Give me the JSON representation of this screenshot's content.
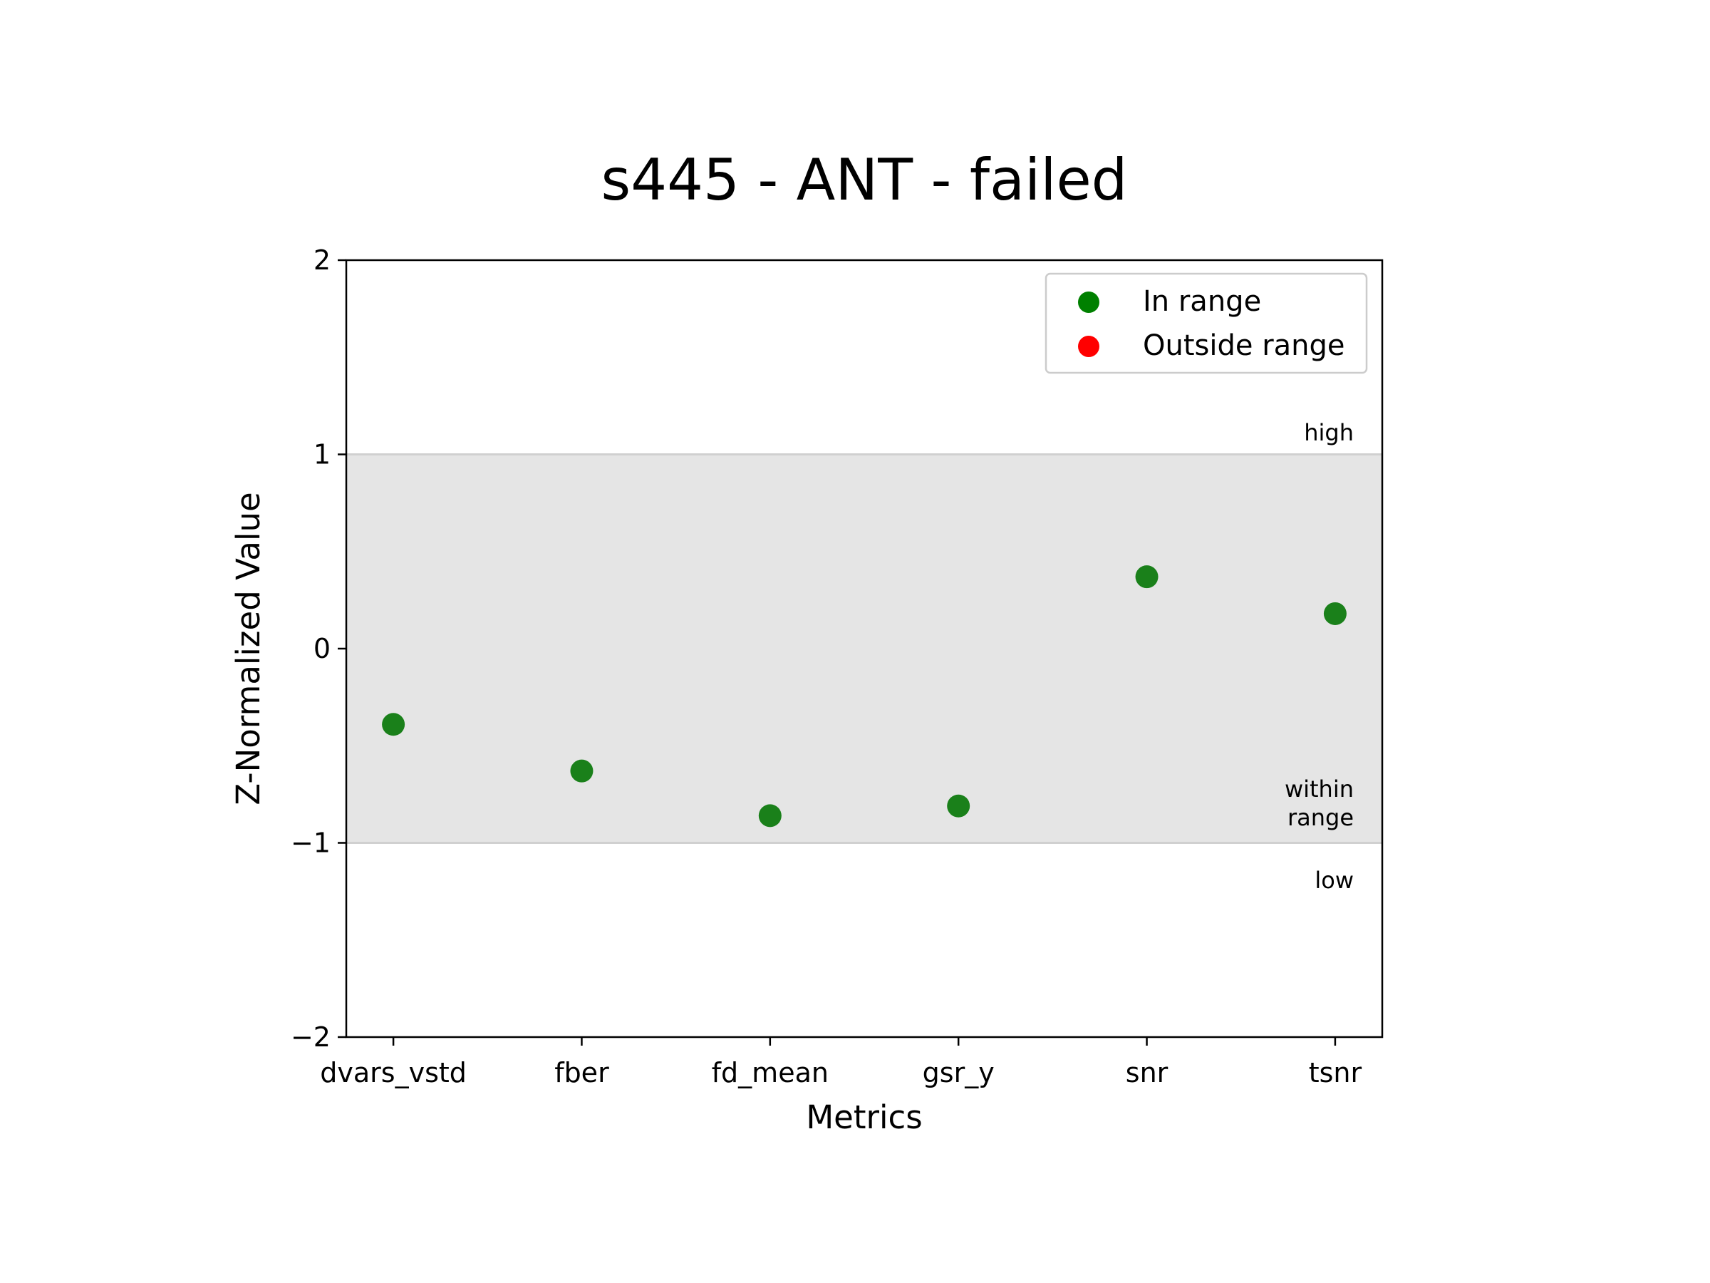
{
  "chart_data": {
    "type": "scatter",
    "title": "s445 - ANT - failed",
    "xlabel": "Metrics",
    "ylabel": "Z-Normalized Value",
    "ylim": [
      -2,
      2
    ],
    "yticks": [
      2,
      1,
      0,
      -1,
      -2
    ],
    "ytick_labels": [
      "2",
      "1",
      "0",
      "−1",
      "−2"
    ],
    "categories": [
      "dvars_vstd",
      "fber",
      "fd_mean",
      "gsr_y",
      "snr",
      "tsnr"
    ],
    "series": [
      {
        "name": "In range",
        "color": "#1a801a",
        "values": [
          -0.39,
          -0.63,
          -0.86,
          -0.81,
          0.37,
          0.18
        ]
      },
      {
        "name": "Outside range",
        "color": "#ff0000",
        "values": []
      }
    ],
    "range_band": {
      "low": -1,
      "high": 1,
      "color": "#e5e5e5",
      "line_color": "#d0d0d0"
    },
    "band_labels": {
      "high": "high",
      "within_line1": "within",
      "within_line2": "range",
      "low": "low"
    },
    "legend": {
      "placement": "top-right",
      "marker_colors": [
        "#008000",
        "#ff0000"
      ]
    },
    "grid": false
  }
}
